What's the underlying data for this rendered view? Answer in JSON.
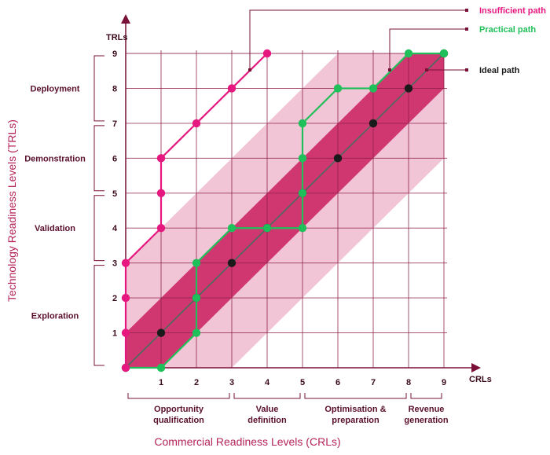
{
  "chart_data": {
    "type": "line",
    "xlabel": "Commercial Readiness Levels (CRLs)",
    "ylabel": "Technology Readiness Levels (TRLs)",
    "x_axis_short": "CRLs",
    "y_axis_short": "TRLs",
    "xlim": [
      0,
      9
    ],
    "ylim": [
      0,
      9
    ],
    "x_ticks": [
      1,
      2,
      3,
      4,
      5,
      6,
      7,
      8,
      9
    ],
    "y_ticks": [
      1,
      2,
      3,
      4,
      5,
      6,
      7,
      8,
      9
    ],
    "grid": true,
    "x_stages": [
      {
        "label": "Opportunity\nqualification",
        "from": 0,
        "to": 3
      },
      {
        "label": "Value\ndefinition",
        "from": 3,
        "to": 5
      },
      {
        "label": "Optimisation &\npreparation",
        "from": 5,
        "to": 8
      },
      {
        "label": "Revenue\ngeneration",
        "from": 8,
        "to": 9
      }
    ],
    "y_stages": [
      {
        "label": "Exploration",
        "from": 0,
        "to": 3
      },
      {
        "label": "Validation",
        "from": 3,
        "to": 5
      },
      {
        "label": "Demonstration",
        "from": 5,
        "to": 7
      },
      {
        "label": "Deployment",
        "from": 7,
        "to": 9
      }
    ],
    "series": [
      {
        "name": "Insufficient path",
        "color": "#e6187f",
        "points": [
          [
            0,
            0
          ],
          [
            0,
            1
          ],
          [
            0,
            2
          ],
          [
            0,
            3
          ],
          [
            1,
            4
          ],
          [
            1,
            5
          ],
          [
            1,
            6
          ],
          [
            2,
            7
          ],
          [
            3,
            8
          ],
          [
            4,
            9
          ]
        ]
      },
      {
        "name": "Practical path",
        "color": "#1fbf5a",
        "points": [
          [
            0,
            0
          ],
          [
            1,
            0
          ],
          [
            2,
            1
          ],
          [
            2,
            2
          ],
          [
            2,
            3
          ],
          [
            3,
            4
          ],
          [
            4,
            4
          ],
          [
            5,
            4
          ],
          [
            5,
            5
          ],
          [
            5,
            6
          ],
          [
            5,
            7
          ],
          [
            6,
            8
          ],
          [
            7,
            8
          ],
          [
            8,
            9
          ],
          [
            9,
            9
          ]
        ]
      },
      {
        "name": "Ideal path",
        "color": "#1a1a1a",
        "points": [
          [
            0,
            0
          ],
          [
            1,
            1
          ],
          [
            2,
            2
          ],
          [
            3,
            3
          ],
          [
            4,
            4
          ],
          [
            5,
            5
          ],
          [
            6,
            6
          ],
          [
            7,
            7
          ],
          [
            8,
            8
          ],
          [
            9,
            9
          ]
        ]
      }
    ],
    "bands": [
      {
        "name": "outer band",
        "half_width": 3,
        "color": "#dc6f97",
        "opacity": 0.4
      },
      {
        "name": "inner band",
        "half_width": 1,
        "color": "#c8175a",
        "opacity": 0.82
      }
    ]
  },
  "colors": {
    "grid": "#8c1d47",
    "axis": "#7a1038",
    "tick_text": "#3a0a1c",
    "label_text": "#b5245a",
    "stage_text": "#5a0f2c",
    "path_line": "#4a6b5c"
  }
}
